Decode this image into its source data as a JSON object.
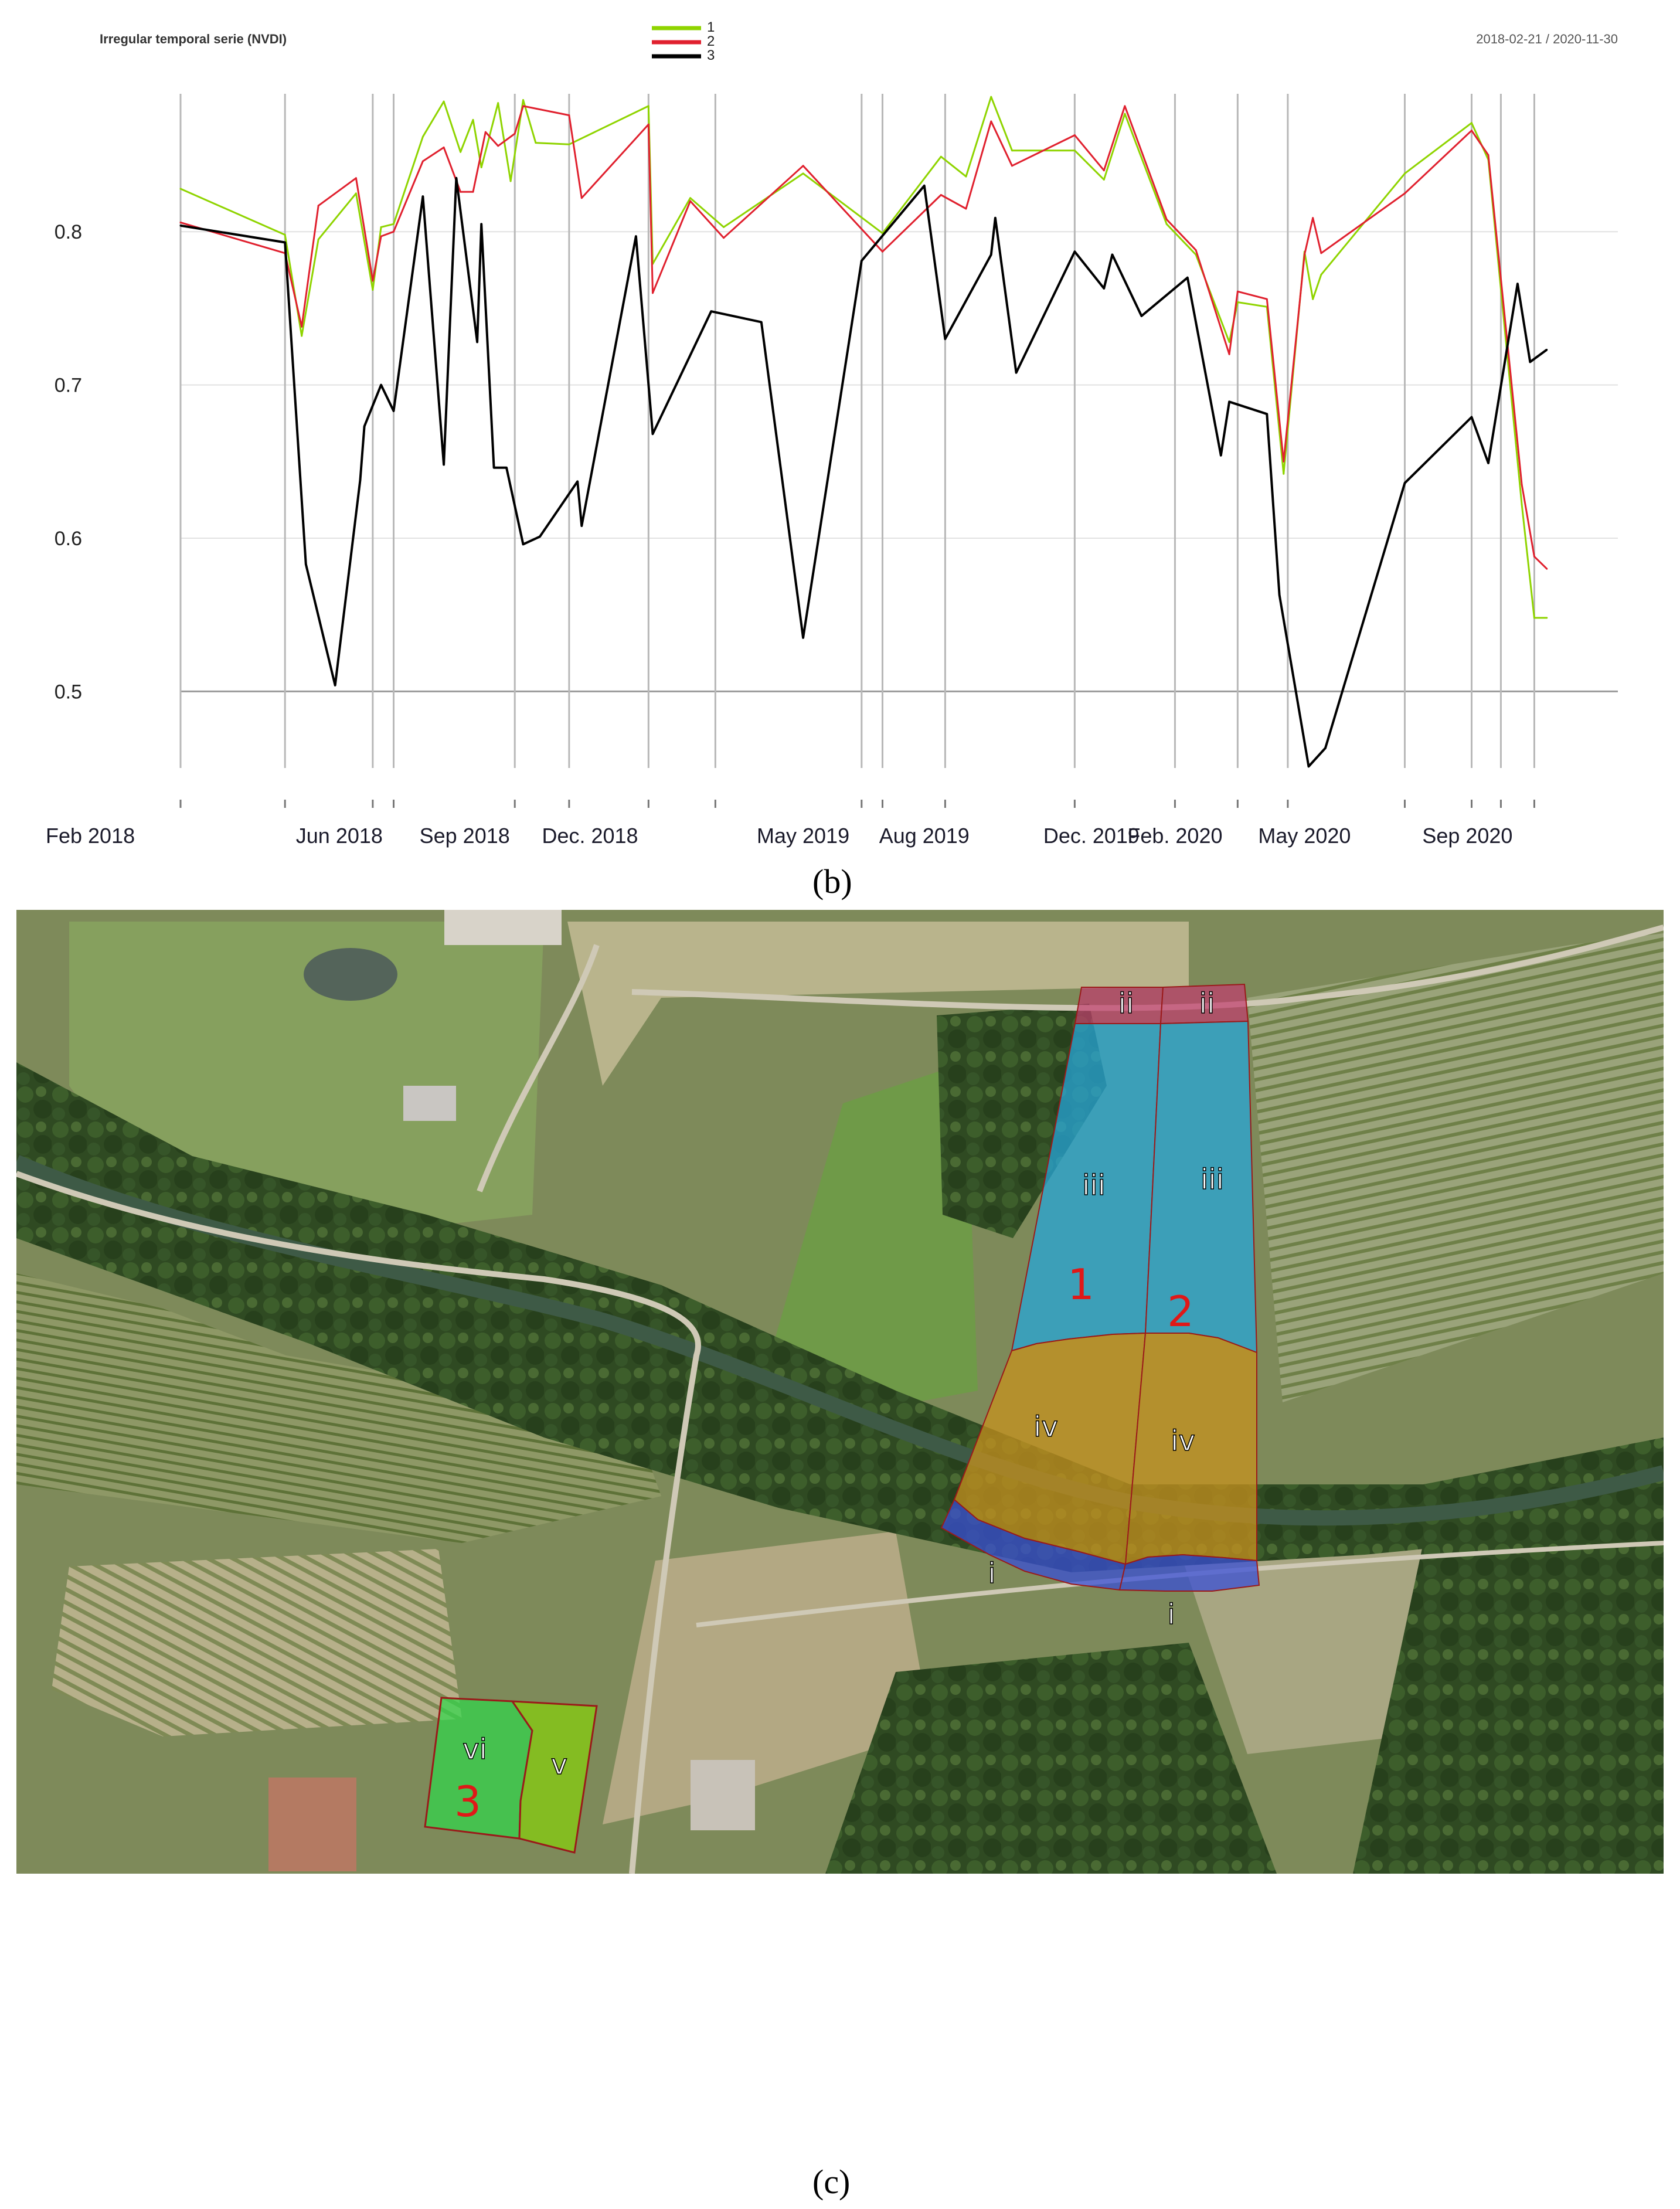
{
  "chart_data": {
    "type": "line",
    "title": "Irregular temporal serie (NVDI)",
    "date_range": "2018-02-21 / 2020-11-30",
    "ylim": [
      0.45,
      0.89
    ],
    "yticks": [
      "0.8",
      "0.7",
      "0.6",
      "0.5"
    ],
    "ytick_values": [
      0.8,
      0.7,
      0.6,
      0.5
    ],
    "xlim": [
      0,
      34.4
    ],
    "xtick_labels": [
      {
        "text": "Feb 2018",
        "x": 0.0
      },
      {
        "text": "Jun 2018",
        "x": 3.8
      },
      {
        "text": "Sep 2018",
        "x": 6.8
      },
      {
        "text": "Dec. 2018",
        "x": 9.8
      },
      {
        "text": "May 2019",
        "x": 14.9
      },
      {
        "text": "Aug 2019",
        "x": 17.8
      },
      {
        "text": "Dec. 2019",
        "x": 21.8
      },
      {
        "text": "Feb. 2020",
        "x": 23.8
      },
      {
        "text": "May 2020",
        "x": 26.9
      },
      {
        "text": "Sep 2020",
        "x": 30.8
      }
    ],
    "vlines": [
      0.0,
      2.5,
      4.6,
      5.1,
      8.0,
      9.3,
      11.2,
      12.8,
      16.3,
      16.8,
      18.3,
      21.4,
      23.8,
      25.3,
      26.5,
      29.3,
      30.9,
      31.6,
      32.4
    ],
    "legend": [
      "1",
      "2",
      "3"
    ],
    "legend_colors": [
      "#8fd400",
      "#e0202e",
      "#000000"
    ],
    "series": [
      {
        "name": "1",
        "color": "#8fd400",
        "points": [
          [
            0.0,
            0.828
          ],
          [
            2.5,
            0.798
          ],
          [
            2.9,
            0.732
          ],
          [
            3.3,
            0.795
          ],
          [
            4.2,
            0.825
          ],
          [
            4.6,
            0.762
          ],
          [
            4.8,
            0.803
          ],
          [
            5.1,
            0.805
          ],
          [
            5.8,
            0.862
          ],
          [
            6.3,
            0.885
          ],
          [
            6.7,
            0.852
          ],
          [
            7.0,
            0.873
          ],
          [
            7.2,
            0.842
          ],
          [
            7.6,
            0.884
          ],
          [
            7.9,
            0.833
          ],
          [
            8.2,
            0.886
          ],
          [
            8.5,
            0.858
          ],
          [
            9.3,
            0.857
          ],
          [
            11.2,
            0.882
          ],
          [
            11.3,
            0.779
          ],
          [
            12.2,
            0.822
          ],
          [
            13.0,
            0.803
          ],
          [
            14.9,
            0.838
          ],
          [
            16.8,
            0.799
          ],
          [
            18.2,
            0.849
          ],
          [
            18.8,
            0.836
          ],
          [
            19.4,
            0.888
          ],
          [
            19.9,
            0.853
          ],
          [
            21.4,
            0.853
          ],
          [
            22.1,
            0.834
          ],
          [
            22.6,
            0.877
          ],
          [
            23.6,
            0.805
          ],
          [
            24.3,
            0.785
          ],
          [
            25.1,
            0.728
          ],
          [
            25.3,
            0.754
          ],
          [
            26.0,
            0.751
          ],
          [
            26.4,
            0.642
          ],
          [
            26.9,
            0.787
          ],
          [
            27.1,
            0.756
          ],
          [
            27.3,
            0.772
          ],
          [
            29.3,
            0.838
          ],
          [
            30.9,
            0.871
          ],
          [
            31.3,
            0.847
          ],
          [
            32.1,
            0.622
          ],
          [
            32.4,
            0.548
          ],
          [
            32.7,
            0.548
          ]
        ]
      },
      {
        "name": "2",
        "color": "#e0202e",
        "points": [
          [
            0.0,
            0.806
          ],
          [
            2.5,
            0.786
          ],
          [
            2.9,
            0.738
          ],
          [
            3.3,
            0.817
          ],
          [
            4.2,
            0.835
          ],
          [
            4.6,
            0.768
          ],
          [
            4.8,
            0.797
          ],
          [
            5.1,
            0.8
          ],
          [
            5.8,
            0.846
          ],
          [
            6.3,
            0.855
          ],
          [
            6.7,
            0.826
          ],
          [
            7.0,
            0.826
          ],
          [
            7.3,
            0.865
          ],
          [
            7.6,
            0.856
          ],
          [
            8.0,
            0.864
          ],
          [
            8.2,
            0.882
          ],
          [
            9.3,
            0.876
          ],
          [
            9.6,
            0.822
          ],
          [
            11.2,
            0.87
          ],
          [
            11.3,
            0.76
          ],
          [
            12.2,
            0.82
          ],
          [
            13.0,
            0.796
          ],
          [
            14.9,
            0.843
          ],
          [
            16.8,
            0.787
          ],
          [
            18.2,
            0.824
          ],
          [
            18.8,
            0.815
          ],
          [
            19.4,
            0.872
          ],
          [
            19.9,
            0.843
          ],
          [
            21.4,
            0.863
          ],
          [
            22.1,
            0.84
          ],
          [
            22.6,
            0.882
          ],
          [
            23.6,
            0.808
          ],
          [
            24.3,
            0.788
          ],
          [
            25.1,
            0.72
          ],
          [
            25.3,
            0.761
          ],
          [
            26.0,
            0.756
          ],
          [
            26.4,
            0.65
          ],
          [
            26.9,
            0.785
          ],
          [
            27.1,
            0.809
          ],
          [
            27.3,
            0.786
          ],
          [
            29.3,
            0.825
          ],
          [
            30.9,
            0.866
          ],
          [
            31.3,
            0.85
          ],
          [
            32.1,
            0.635
          ],
          [
            32.4,
            0.588
          ],
          [
            32.7,
            0.58
          ]
        ]
      },
      {
        "name": "3",
        "color": "#000000",
        "points": [
          [
            0.0,
            0.804
          ],
          [
            2.5,
            0.793
          ],
          [
            3.0,
            0.583
          ],
          [
            3.7,
            0.504
          ],
          [
            4.3,
            0.638
          ],
          [
            4.4,
            0.673
          ],
          [
            4.8,
            0.7
          ],
          [
            5.1,
            0.683
          ],
          [
            5.8,
            0.823
          ],
          [
            6.3,
            0.648
          ],
          [
            6.6,
            0.835
          ],
          [
            7.1,
            0.728
          ],
          [
            7.2,
            0.805
          ],
          [
            7.5,
            0.646
          ],
          [
            7.8,
            0.646
          ],
          [
            8.2,
            0.596
          ],
          [
            8.6,
            0.601
          ],
          [
            9.5,
            0.637
          ],
          [
            9.6,
            0.608
          ],
          [
            10.9,
            0.797
          ],
          [
            11.3,
            0.668
          ],
          [
            12.7,
            0.748
          ],
          [
            13.9,
            0.741
          ],
          [
            14.9,
            0.535
          ],
          [
            16.3,
            0.781
          ],
          [
            17.8,
            0.83
          ],
          [
            18.3,
            0.73
          ],
          [
            19.4,
            0.785
          ],
          [
            19.5,
            0.809
          ],
          [
            20.0,
            0.708
          ],
          [
            21.4,
            0.787
          ],
          [
            22.1,
            0.763
          ],
          [
            22.3,
            0.785
          ],
          [
            23.0,
            0.745
          ],
          [
            24.1,
            0.77
          ],
          [
            24.9,
            0.654
          ],
          [
            25.1,
            0.689
          ],
          [
            26.0,
            0.681
          ],
          [
            26.3,
            0.563
          ],
          [
            27.0,
            0.451
          ],
          [
            27.4,
            0.463
          ],
          [
            29.3,
            0.636
          ],
          [
            30.9,
            0.679
          ],
          [
            31.3,
            0.649
          ],
          [
            32.0,
            0.766
          ],
          [
            32.3,
            0.715
          ],
          [
            32.7,
            0.723
          ]
        ]
      }
    ]
  },
  "panel_labels": {
    "chart": "(b)",
    "photo": "(c)"
  },
  "map_labels": {
    "zone_i_left": "i",
    "zone_i_right": "i",
    "zone_ii_left": "ii",
    "zone_ii_right": "ii",
    "zone_iii_left": "iii",
    "zone_iii_right": "iii",
    "zone_iv_left": "iv",
    "zone_iv_right": "iv",
    "zone_v": "v",
    "zone_vi": "vi",
    "plot_1": "1",
    "plot_2": "2",
    "plot_3": "3"
  },
  "colors": {
    "zone_i": "#3a4fd6",
    "zone_ii": "#c23c6e",
    "zone_iii": "#27a6d8",
    "zone_iv": "#c7921f",
    "zone_v": "#86c814",
    "zone_vi": "#2fd84a",
    "plot_number": "#e01818",
    "zone_outline": "#9a1a1a"
  }
}
